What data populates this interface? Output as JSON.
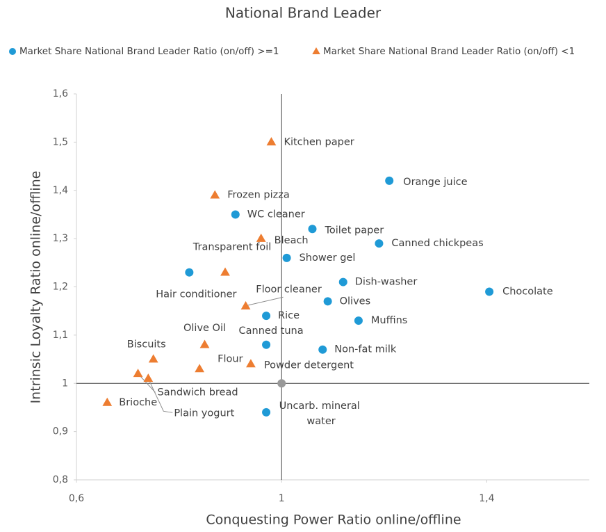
{
  "chart_data": {
    "type": "scatter",
    "title": "National Brand Leader",
    "x_label": "Conquesting Power Ratio online/offline",
    "y_label": "Intrinsic Loyalty Ratio online/offline",
    "xlim": [
      0.6,
      1.6
    ],
    "ylim": [
      0.8,
      1.6
    ],
    "xticks": [
      {
        "value": 0.6,
        "label": "0,6"
      },
      1,
      {
        "value": 1.4,
        "label": "1,4"
      }
    ],
    "yticks": [
      {
        "value": 0.8,
        "label": "0,8"
      },
      {
        "value": 0.9,
        "label": "0,9"
      },
      1,
      {
        "value": 1.1,
        "label": "1,1"
      },
      {
        "value": 1.2,
        "label": "1,2"
      },
      {
        "value": 1.3,
        "label": "1,3"
      },
      {
        "value": 1.4,
        "label": "1,4"
      },
      {
        "value": 1.5,
        "label": "1,5"
      },
      {
        "value": 1.6,
        "label": "1,6"
      }
    ],
    "crosshair": {
      "x": 1,
      "y": 1,
      "color": "#999999"
    },
    "legend": "top",
    "series": [
      {
        "name": "Market Share National Brand Leader Ratio (on/off) >=1",
        "color": "#1f9ad6",
        "marker": "circle",
        "labels": [
          "Orange juice",
          "WC cleaner",
          "Toilet paper",
          "Canned chickpeas",
          "Shower gel",
          "Hair conditioner",
          "Dish-washer",
          "Chocolate",
          "Olives",
          "Rice",
          "Muffins",
          "Canned tuna",
          "Non-fat milk",
          "Uncarb. mineral water"
        ],
        "x": [
          1.21,
          0.91,
          1.06,
          1.19,
          1.01,
          0.82,
          1.12,
          1.405,
          1.09,
          0.97,
          1.15,
          0.97,
          1.08,
          0.97
        ],
        "y": [
          1.42,
          1.35,
          1.32,
          1.29,
          1.26,
          1.23,
          1.21,
          1.19,
          1.17,
          1.14,
          1.13,
          1.08,
          1.07,
          0.94
        ]
      },
      {
        "name": "Market Share National Brand Leader Ratio (on/off) <1",
        "color": "#ed7d31",
        "marker": "triangle",
        "labels": [
          "Kitchen paper",
          "Frozen pizza",
          "Bleach",
          "Transparent foil",
          "Floor cleaner",
          "Olive Oil",
          "Biscuits",
          "Flour",
          "Powder detergent",
          "Sandwich bread",
          "Plain yogurt",
          "Brioche"
        ],
        "x": [
          0.98,
          0.87,
          0.96,
          0.89,
          0.93,
          0.85,
          0.75,
          0.84,
          0.94,
          0.72,
          0.74,
          0.66
        ],
        "y": [
          1.5,
          1.39,
          1.3,
          1.23,
          1.16,
          1.08,
          1.05,
          1.03,
          1.04,
          1.02,
          1.01,
          0.96
        ]
      }
    ]
  }
}
